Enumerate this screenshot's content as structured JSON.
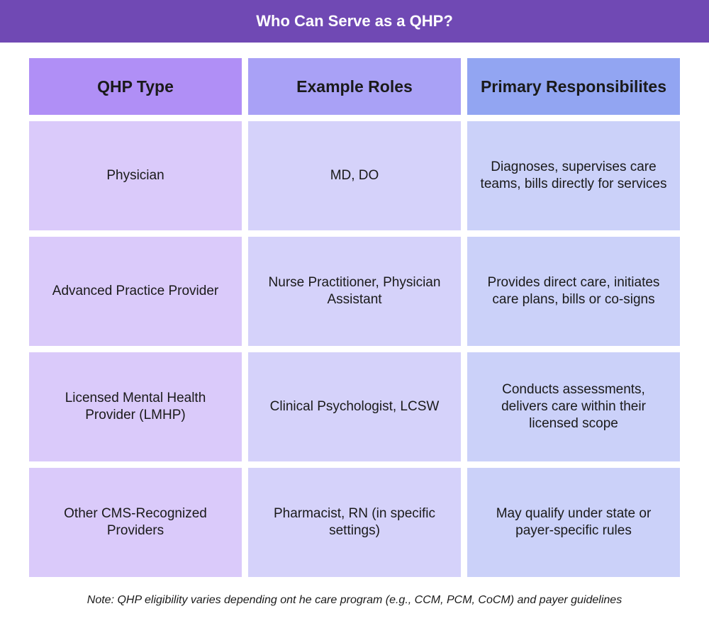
{
  "header": {
    "title": "Who Can Serve as a QHP?"
  },
  "table": {
    "columns": [
      "QHP Type",
      "Example Roles",
      "Primary Responsibilites"
    ],
    "rows": [
      [
        "Physician",
        "MD, DO",
        "Diagnoses, supervises care teams, bills directly for services"
      ],
      [
        "Advanced Practice Provider",
        "Nurse Practitioner, Physician Assistant",
        "Provides direct care, initiates care plans, bills or co-signs"
      ],
      [
        "Licensed Mental Health Provider (LMHP)",
        "Clinical Psychologist, LCSW",
        "Conducts assessments, delivers care within their licensed scope"
      ],
      [
        "Other CMS-Recognized Providers",
        "Pharmacist, RN (in specific settings)",
        "May qualify under state or payer-specific rules"
      ]
    ]
  },
  "note": "Note: QHP eligibility varies depending ont he care program (e.g., CCM, PCM, CoCM) and payer guidelines"
}
